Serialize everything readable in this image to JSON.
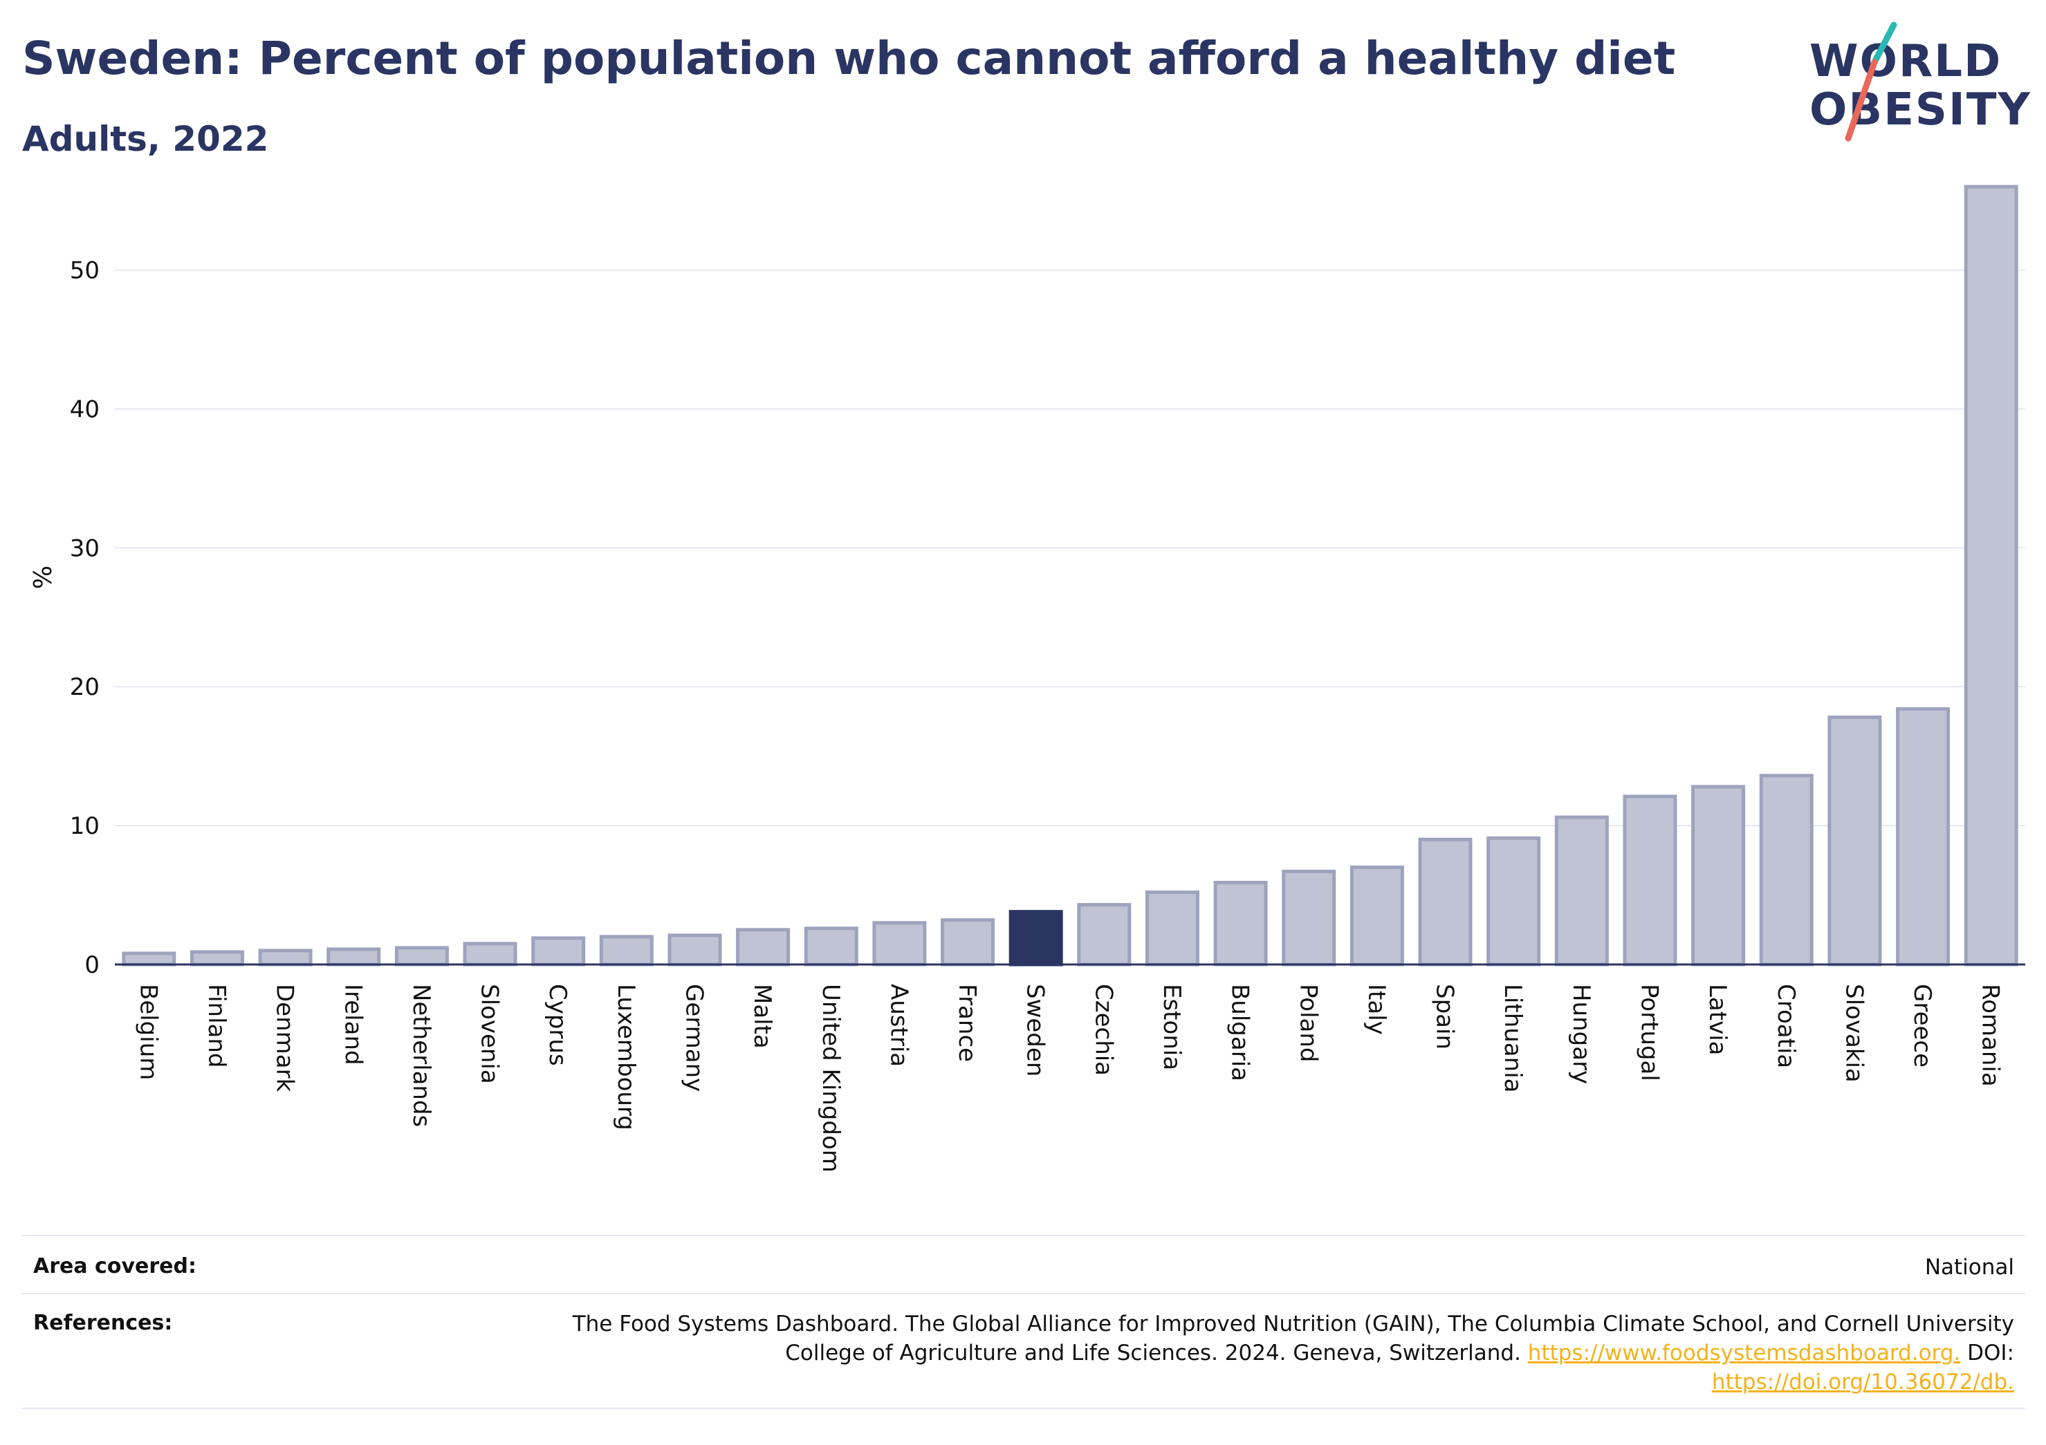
{
  "header": {
    "title": "Sweden: Percent of population who cannot afford a healthy diet",
    "subtitle": "Adults, 2022"
  },
  "logo": {
    "line1": "WORLD",
    "line2": "OBESITY",
    "colors": {
      "navy": "#2a3563",
      "coral": "#e8685a",
      "teal": "#2bb7b2"
    }
  },
  "chart_data": {
    "type": "bar",
    "title": "Sweden: Percent of population who cannot afford a healthy diet",
    "subtitle": "Adults, 2022",
    "xlabel": "",
    "ylabel": "%",
    "ylim": [
      0,
      57
    ],
    "yticks": [
      0,
      10,
      20,
      30,
      40,
      50
    ],
    "grid": true,
    "legend": "none",
    "highlight": "Sweden",
    "colors": {
      "default": "#bfc3d3",
      "default_outline": "#9ea3bd",
      "highlight": "#2a3563"
    },
    "categories": [
      "Belgium",
      "Finland",
      "Denmark",
      "Ireland",
      "Netherlands",
      "Slovenia",
      "Cyprus",
      "Luxembourg",
      "Germany",
      "Malta",
      "United Kingdom",
      "Austria",
      "France",
      "Sweden",
      "Czechia",
      "Estonia",
      "Bulgaria",
      "Poland",
      "Italy",
      "Spain",
      "Lithuania",
      "Hungary",
      "Portugal",
      "Latvia",
      "Croatia",
      "Slovakia",
      "Greece",
      "Romania"
    ],
    "values": [
      0.8,
      0.9,
      1.0,
      1.1,
      1.2,
      1.5,
      1.9,
      2.0,
      2.1,
      2.5,
      2.6,
      3.0,
      3.2,
      3.8,
      4.3,
      5.2,
      5.9,
      6.7,
      7.0,
      9.0,
      9.1,
      10.6,
      12.1,
      12.8,
      13.6,
      17.8,
      18.4,
      56.0
    ]
  },
  "info": {
    "area_label": "Area covered:",
    "area_value": "National",
    "ref_label": "References:",
    "ref_line1": "The Food Systems Dashboard. The Global Alliance for Improved Nutrition (GAIN), The Columbia Climate School, and Cornell University",
    "ref_line2_text": "College of Agriculture and Life Sciences. 2024. Geneva, Switzerland.",
    "ref_link1": "https://www.foodsystemsdashboard.org.",
    "ref_doi_label": "DOI:",
    "ref_link2": "https://doi.org/10.36072/db."
  }
}
